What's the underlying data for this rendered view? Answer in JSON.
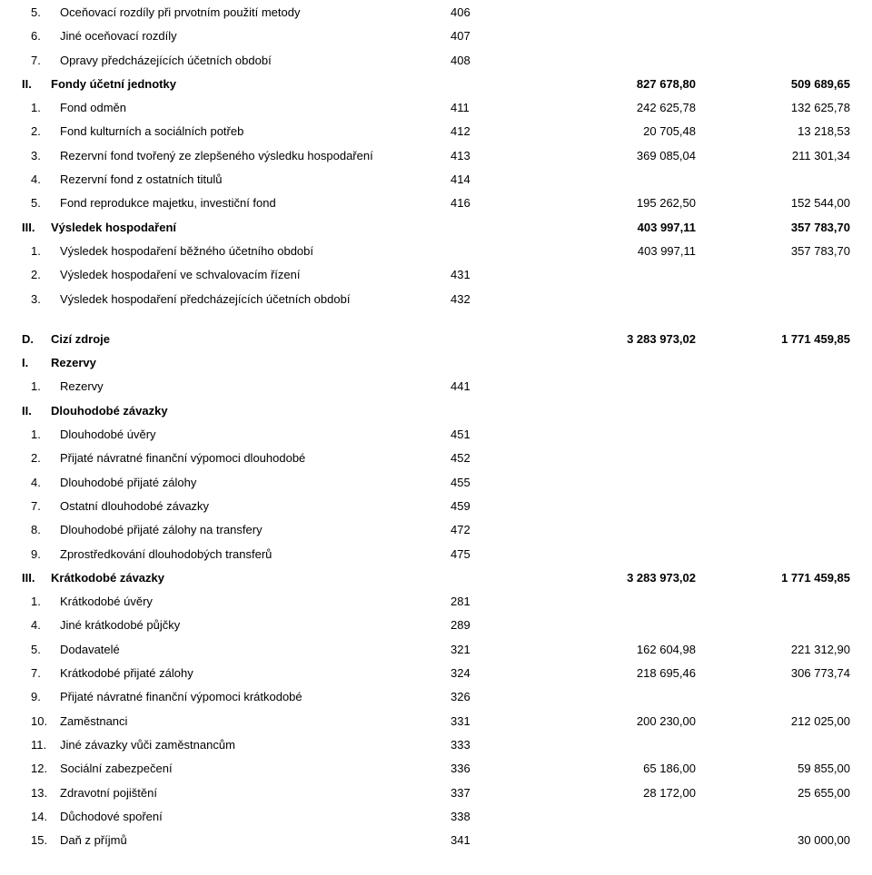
{
  "section1": [
    {
      "num": "5.",
      "label": "Oceňovací rozdíly při prvotním použití metody",
      "code": "406",
      "v1": "",
      "v2": "",
      "bold": false,
      "cls": "indent-inner"
    },
    {
      "num": "6.",
      "label": "Jiné oceňovací rozdíly",
      "code": "407",
      "v1": "",
      "v2": "",
      "bold": false,
      "cls": "indent-inner"
    },
    {
      "num": "7.",
      "label": "Opravy předcházejících účetních období",
      "code": "408",
      "v1": "",
      "v2": "",
      "bold": false,
      "cls": "indent-inner"
    },
    {
      "num": "II.",
      "label": "Fondy účetní jednotky",
      "code": "",
      "v1": "827 678,80",
      "v2": "509 689,65",
      "bold": true,
      "cls": ""
    },
    {
      "num": "1.",
      "label": "Fond odměn",
      "code": "411",
      "v1": "242 625,78",
      "v2": "132 625,78",
      "bold": false,
      "cls": "indent-inner"
    },
    {
      "num": "2.",
      "label": "Fond kulturních a sociálních potřeb",
      "code": "412",
      "v1": "20 705,48",
      "v2": "13 218,53",
      "bold": false,
      "cls": "indent-inner"
    },
    {
      "num": "3.",
      "label": "Rezervní fond tvořený ze zlepšeného výsledku hospodaření",
      "code": "413",
      "v1": "369 085,04",
      "v2": "211 301,34",
      "bold": false,
      "cls": "indent-inner"
    },
    {
      "num": "4.",
      "label": "Rezervní fond z ostatních titulů",
      "code": "414",
      "v1": "",
      "v2": "",
      "bold": false,
      "cls": "indent-inner"
    },
    {
      "num": "5.",
      "label": "Fond reprodukce majetku, investiční fond",
      "code": "416",
      "v1": "195 262,50",
      "v2": "152 544,00",
      "bold": false,
      "cls": "indent-inner"
    },
    {
      "num": "III.",
      "label": "Výsledek hospodaření",
      "code": "",
      "v1": "403 997,11",
      "v2": "357 783,70",
      "bold": true,
      "cls": ""
    },
    {
      "num": "1.",
      "label": "Výsledek hospodaření běžného účetního období",
      "code": "",
      "v1": "403 997,11",
      "v2": "357 783,70",
      "bold": false,
      "cls": "indent-inner"
    },
    {
      "num": "2.",
      "label": "Výsledek hospodaření ve schvalovacím řízení",
      "code": "431",
      "v1": "",
      "v2": "",
      "bold": false,
      "cls": "indent-inner"
    },
    {
      "num": "3.",
      "label": "Výsledek hospodaření předcházejících účetních období",
      "code": "432",
      "v1": "",
      "v2": "",
      "bold": false,
      "cls": "indent-inner"
    }
  ],
  "section2": [
    {
      "num": "D.",
      "label": "Cizí zdroje",
      "code": "",
      "v1": "3 283 973,02",
      "v2": "1 771 459,85",
      "bold": true,
      "cls": ""
    },
    {
      "num": "I.",
      "label": "Rezervy",
      "code": "",
      "v1": "",
      "v2": "",
      "bold": true,
      "cls": ""
    },
    {
      "num": "1.",
      "label": "Rezervy",
      "code": "441",
      "v1": "",
      "v2": "",
      "bold": false,
      "cls": "indent-inner"
    },
    {
      "num": "II.",
      "label": "Dlouhodobé závazky",
      "code": "",
      "v1": "",
      "v2": "",
      "bold": true,
      "cls": ""
    },
    {
      "num": "1.",
      "label": "Dlouhodobé úvěry",
      "code": "451",
      "v1": "",
      "v2": "",
      "bold": false,
      "cls": "indent-inner"
    },
    {
      "num": "2.",
      "label": "Přijaté návratné finanční výpomoci dlouhodobé",
      "code": "452",
      "v1": "",
      "v2": "",
      "bold": false,
      "cls": "indent-inner"
    },
    {
      "num": "4.",
      "label": "Dlouhodobé přijaté zálohy",
      "code": "455",
      "v1": "",
      "v2": "",
      "bold": false,
      "cls": "indent-inner"
    },
    {
      "num": "7.",
      "label": "Ostatní dlouhodobé závazky",
      "code": "459",
      "v1": "",
      "v2": "",
      "bold": false,
      "cls": "indent-inner"
    },
    {
      "num": "8.",
      "label": "Dlouhodobé přijaté zálohy na transfery",
      "code": "472",
      "v1": "",
      "v2": "",
      "bold": false,
      "cls": "indent-inner"
    },
    {
      "num": "9.",
      "label": "Zprostředkování dlouhodobých transferů",
      "code": "475",
      "v1": "",
      "v2": "",
      "bold": false,
      "cls": "indent-inner"
    },
    {
      "num": "III.",
      "label": "Krátkodobé závazky",
      "code": "",
      "v1": "3 283 973,02",
      "v2": "1 771 459,85",
      "bold": true,
      "cls": ""
    },
    {
      "num": "1.",
      "label": "Krátkodobé úvěry",
      "code": "281",
      "v1": "",
      "v2": "",
      "bold": false,
      "cls": "indent-inner"
    },
    {
      "num": "4.",
      "label": "Jiné krátkodobé půjčky",
      "code": "289",
      "v1": "",
      "v2": "",
      "bold": false,
      "cls": "indent-inner"
    },
    {
      "num": "5.",
      "label": "Dodavatelé",
      "code": "321",
      "v1": "162 604,98",
      "v2": "221 312,90",
      "bold": false,
      "cls": "indent-inner"
    },
    {
      "num": "7.",
      "label": "Krátkodobé přijaté zálohy",
      "code": "324",
      "v1": "218 695,46",
      "v2": "306 773,74",
      "bold": false,
      "cls": "indent-inner"
    },
    {
      "num": "9.",
      "label": "Přijaté návratné finanční výpomoci krátkodobé",
      "code": "326",
      "v1": "",
      "v2": "",
      "bold": false,
      "cls": "indent-inner"
    },
    {
      "num": "10.",
      "label": "Zaměstnanci",
      "code": "331",
      "v1": "200 230,00",
      "v2": "212 025,00",
      "bold": false,
      "cls": "indent-inner"
    },
    {
      "num": "11.",
      "label": "Jiné závazky vůči zaměstnancům",
      "code": "333",
      "v1": "",
      "v2": "",
      "bold": false,
      "cls": "indent-inner"
    },
    {
      "num": "12.",
      "label": "Sociální zabezpečení",
      "code": "336",
      "v1": "65 186,00",
      "v2": "59 855,00",
      "bold": false,
      "cls": "indent-inner"
    },
    {
      "num": "13.",
      "label": "Zdravotní pojištění",
      "code": "337",
      "v1": "28 172,00",
      "v2": "25 655,00",
      "bold": false,
      "cls": "indent-inner"
    },
    {
      "num": "14.",
      "label": "Důchodové spoření",
      "code": "338",
      "v1": "",
      "v2": "",
      "bold": false,
      "cls": "indent-inner"
    },
    {
      "num": "15.",
      "label": "Daň z příjmů",
      "code": "341",
      "v1": "",
      "v2": "30 000,00",
      "bold": false,
      "cls": "indent-inner"
    }
  ]
}
